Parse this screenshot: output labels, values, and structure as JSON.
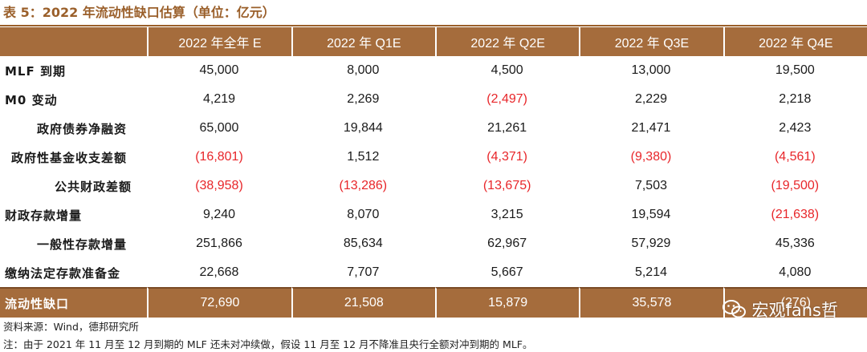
{
  "title": "表 5：2022 年流动性缺口估算（单位：亿元）",
  "columns": [
    "2022 年全年 E",
    "2022 年 Q1E",
    "2022 年 Q2E",
    "2022 年 Q3E",
    "2022 年 Q4E"
  ],
  "rows": [
    {
      "label": "MLF 到期",
      "indent": 0,
      "values": [
        "45,000",
        "8,000",
        "4,500",
        "13,000",
        "19,500"
      ]
    },
    {
      "label": "M0 变动",
      "indent": 0,
      "values": [
        "4,219",
        "2,269",
        "(2,497)",
        "2,229",
        "2,218"
      ]
    },
    {
      "label": "政府债券净融资",
      "indent": 3,
      "values": [
        "65,000",
        "19,844",
        "21,261",
        "21,471",
        "2,423"
      ]
    },
    {
      "label": "政府性基金收支差额",
      "indent": 1,
      "values": [
        "(16,801)",
        "1,512",
        "(4,371)",
        "(9,380)",
        "(4,561)"
      ]
    },
    {
      "label": "公共财政差额",
      "indent": 4,
      "values": [
        "(38,958)",
        "(13,286)",
        "(13,675)",
        "7,503",
        "(19,500)"
      ]
    },
    {
      "label": "财政存款增量",
      "indent": 0,
      "values": [
        "9,240",
        "8,070",
        "3,215",
        "19,594",
        "(21,638)"
      ]
    },
    {
      "label": "一般性存款增量",
      "indent": 3,
      "values": [
        "251,866",
        "85,634",
        "62,967",
        "57,929",
        "45,336"
      ]
    },
    {
      "label": "缴纳法定存款准备金",
      "indent": 0,
      "values": [
        "22,668",
        "7,707",
        "5,667",
        "5,214",
        "4,080"
      ]
    }
  ],
  "total": {
    "label": "流动性缺口",
    "values": [
      "72,690",
      "21,508",
      "15,879",
      "35,578",
      "(276)"
    ]
  },
  "source": "资料来源：Wind，德邦研究所",
  "note": "注：由于 2021 年 11 月至 12 月到期的 MLF 还未对冲续做，假设 11 月至 12 月不降准且央行全额对冲到期的 MLF。",
  "watermark": "宏观fans哲",
  "colors": {
    "header_bg": "#a56c3c",
    "negative": "#e8262a",
    "title": "#9a5f2a"
  }
}
